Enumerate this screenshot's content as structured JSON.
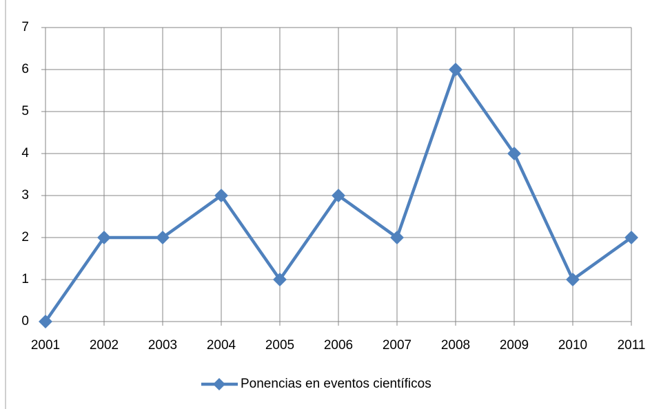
{
  "chart_data": {
    "type": "line",
    "categories": [
      "2001",
      "2002",
      "2003",
      "2004",
      "2005",
      "2006",
      "2007",
      "2008",
      "2009",
      "2010",
      "2011"
    ],
    "series": [
      {
        "name": "Ponencias en eventos científicos",
        "color": "#4f81bd",
        "values": [
          0,
          2,
          2,
          3,
          1,
          3,
          2,
          6,
          4,
          1,
          2
        ]
      }
    ],
    "ylim": [
      0,
      7
    ],
    "yticks": [
      0,
      1,
      2,
      3,
      4,
      5,
      6,
      7
    ],
    "grid": true,
    "legend": "bottom"
  }
}
